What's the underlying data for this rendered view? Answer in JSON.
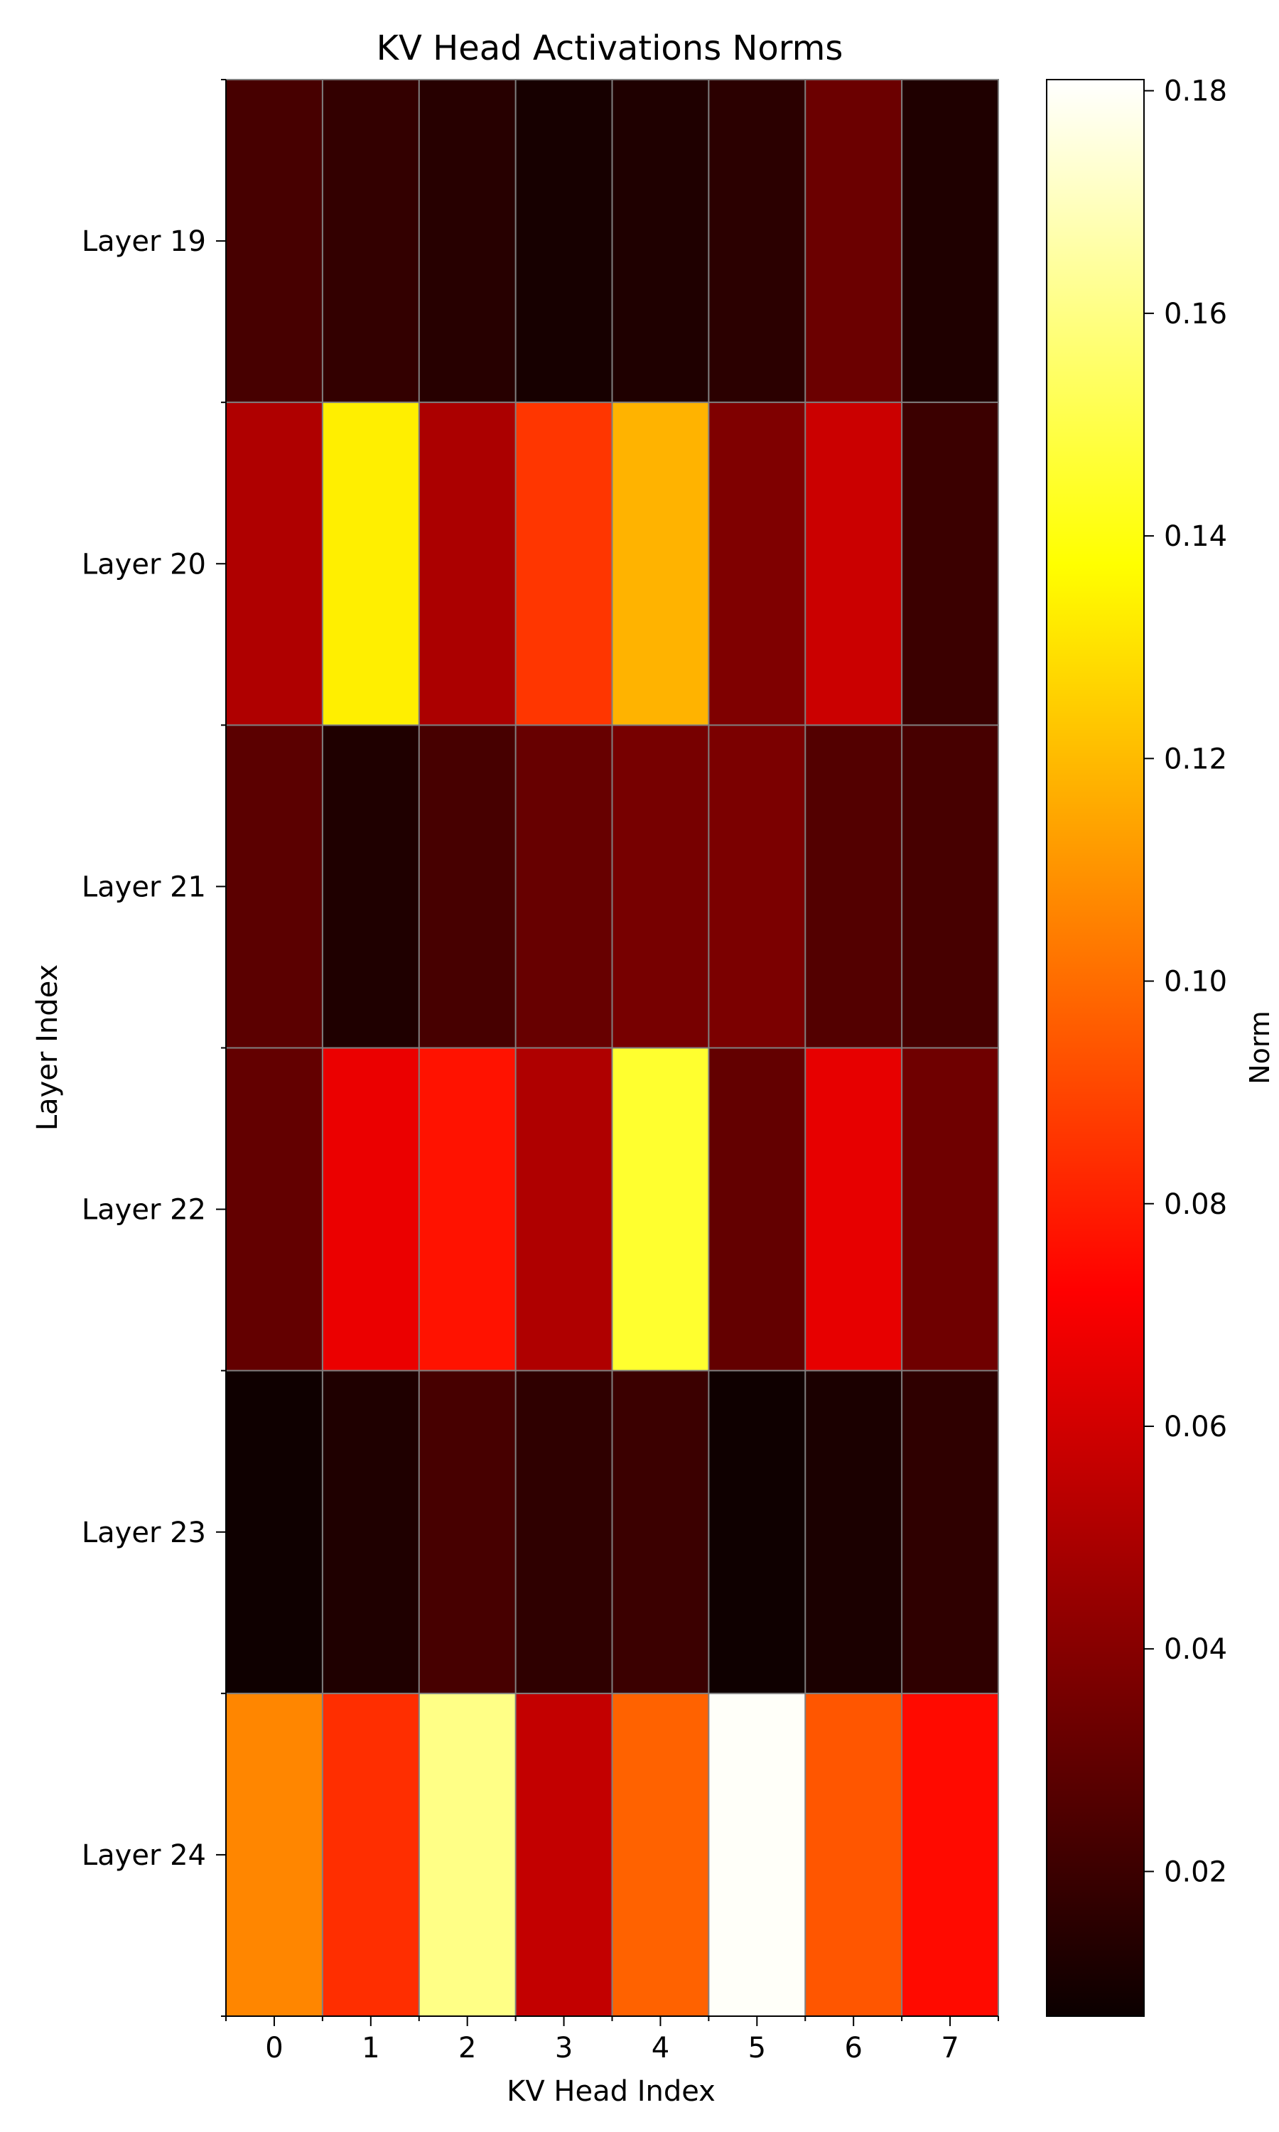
{
  "chart_data": {
    "type": "heatmap",
    "title": "KV Head Activations Norms",
    "xlabel": "KV Head Index",
    "ylabel": "Layer Index",
    "x_categories": [
      "0",
      "1",
      "2",
      "3",
      "4",
      "5",
      "6",
      "7"
    ],
    "y_categories": [
      "Layer 19",
      "Layer 20",
      "Layer 21",
      "Layer 22",
      "Layer 23",
      "Layer 24"
    ],
    "values": [
      [
        0.022,
        0.017,
        0.014,
        0.01,
        0.012,
        0.015,
        0.031,
        0.012
      ],
      [
        0.048,
        0.13,
        0.047,
        0.084,
        0.115,
        0.036,
        0.055,
        0.019
      ],
      [
        0.027,
        0.012,
        0.022,
        0.03,
        0.034,
        0.035,
        0.025,
        0.022
      ],
      [
        0.029,
        0.063,
        0.075,
        0.048,
        0.145,
        0.029,
        0.062,
        0.032
      ],
      [
        0.008,
        0.012,
        0.022,
        0.016,
        0.019,
        0.008,
        0.011,
        0.016
      ],
      [
        0.104,
        0.082,
        0.16,
        0.053,
        0.095,
        0.18,
        0.092,
        0.073
      ]
    ],
    "colorbar": {
      "label": "Norm",
      "colormap": "hot",
      "range": [
        0.007,
        0.181
      ],
      "ticks": [
        0.02,
        0.04,
        0.06,
        0.08,
        0.1,
        0.12,
        0.14,
        0.16,
        0.18
      ],
      "tick_labels": [
        "0.02",
        "0.04",
        "0.06",
        "0.08",
        "0.10",
        "0.12",
        "0.14",
        "0.16",
        "0.18"
      ]
    },
    "grid_color": "#808080"
  }
}
